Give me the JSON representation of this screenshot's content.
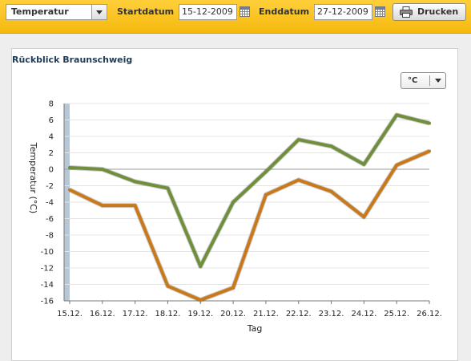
{
  "toolbar": {
    "measure_select": "Temperatur",
    "start_label": "Startdatum",
    "start_value": "15-12-2009",
    "end_label": "Enddatum",
    "end_value": "27-12-2009",
    "print_label": "Drucken"
  },
  "panel": {
    "title": "Rückblick Braunschweig",
    "unit_select": "°C"
  },
  "colors": {
    "toolbar": "#f9c21b",
    "series_max": "#6f8f3a",
    "series_min": "#c9791a"
  },
  "chart_data": {
    "type": "line",
    "categories": [
      "15.12.",
      "16.12.",
      "17.12.",
      "18.12.",
      "19.12.",
      "20.12.",
      "21.12.",
      "22.12.",
      "23.12.",
      "24.12.",
      "25.12.",
      "26.12."
    ],
    "series": [
      {
        "values": [
          0.2,
          0,
          -1.5,
          -2.3,
          -11.8,
          -4,
          -0.3,
          3.6,
          2.8,
          0.6,
          6.6,
          5.6
        ]
      },
      {
        "values": [
          -2.5,
          -4.4,
          -4.4,
          -14.2,
          -15.9,
          -14.4,
          -3.1,
          -1.3,
          -2.7,
          -5.8,
          0.5,
          2.2
        ]
      }
    ],
    "ylabel": "Temperatur (°C)",
    "xlabel": "Tag",
    "ylim": [
      -16,
      8
    ],
    "yticks": [
      8,
      6,
      4,
      2,
      0,
      -2,
      -4,
      -6,
      -8,
      -10,
      -12,
      -14,
      -16
    ],
    "grid": true
  }
}
